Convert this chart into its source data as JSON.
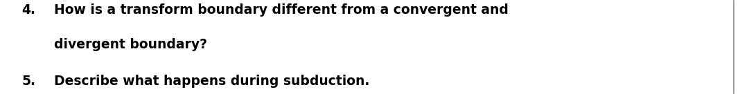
{
  "background_color": "#ffffff",
  "line1_number": "4.",
  "line1_text": "How is a transform boundary different from a convergent and",
  "line2_text": "divergent boundary?",
  "line3_number": "5.",
  "line3_text": "Describe what happens during subduction.",
  "font_size": 13.5,
  "font_family": "DejaVu Sans",
  "font_weight": "bold",
  "text_color": "#000000",
  "right_line_color": "#888888",
  "fig_width": 10.68,
  "fig_height": 1.36
}
